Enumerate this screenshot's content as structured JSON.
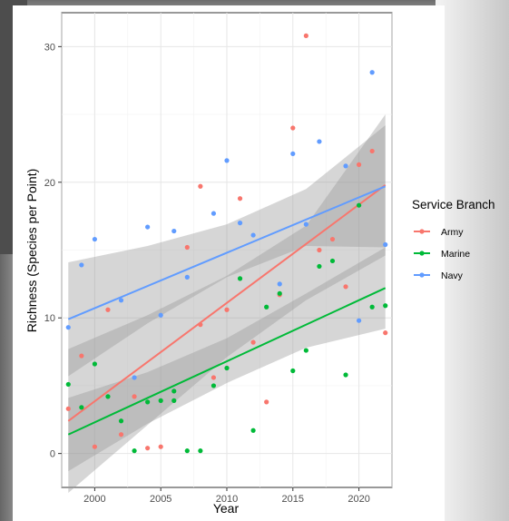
{
  "chart_data": {
    "type": "scatter",
    "xlabel": "Year",
    "ylabel": "Richness (Species per Point)",
    "xlim": [
      1997.5,
      2022.5
    ],
    "ylim": [
      -2.5,
      32.5
    ],
    "x_ticks": [
      2000,
      2005,
      2010,
      2015,
      2020
    ],
    "y_ticks": [
      0,
      10,
      20,
      30
    ],
    "grid": true,
    "legend": {
      "title": "Service Branch",
      "position": "right",
      "entries": [
        "Army",
        "Marine",
        "Navy"
      ]
    },
    "series": [
      {
        "name": "Army",
        "color": "#f8766d",
        "points": [
          [
            1998,
            3.3
          ],
          [
            1999,
            7.2
          ],
          [
            2000,
            0.5
          ],
          [
            2001,
            10.6
          ],
          [
            2002,
            1.4
          ],
          [
            2003,
            4.2
          ],
          [
            2004,
            0.4
          ],
          [
            2005,
            0.5
          ],
          [
            2007,
            15.2
          ],
          [
            2008,
            19.7
          ],
          [
            2008,
            9.5
          ],
          [
            2009,
            5.6
          ],
          [
            2010,
            10.6
          ],
          [
            2011,
            18.8
          ],
          [
            2012,
            8.2
          ],
          [
            2013,
            3.8
          ],
          [
            2014,
            11.7
          ],
          [
            2015,
            24.0
          ],
          [
            2016,
            30.8
          ],
          [
            2017,
            15.0
          ],
          [
            2018,
            15.8
          ],
          [
            2019,
            12.3
          ],
          [
            2020,
            21.3
          ],
          [
            2021,
            22.3
          ],
          [
            2022,
            8.9
          ]
        ],
        "trend": {
          "x": [
            1998,
            2022
          ],
          "y": [
            2.4,
            19.8
          ]
        },
        "ci": {
          "x": [
            1998,
            2004,
            2010,
            2016,
            2022
          ],
          "lower": [
            -2.9,
            2.1,
            7.1,
            11.3,
            14.6
          ],
          "upper": [
            7.7,
            10.2,
            13.1,
            16.8,
            25.0
          ]
        }
      },
      {
        "name": "Marine",
        "color": "#00ba38",
        "points": [
          [
            1998,
            5.1
          ],
          [
            1999,
            3.4
          ],
          [
            2000,
            6.6
          ],
          [
            2001,
            4.2
          ],
          [
            2002,
            2.4
          ],
          [
            2003,
            0.2
          ],
          [
            2004,
            3.8
          ],
          [
            2005,
            3.9
          ],
          [
            2006,
            4.6
          ],
          [
            2006,
            3.9
          ],
          [
            2007,
            0.2
          ],
          [
            2008,
            0.2
          ],
          [
            2009,
            5.0
          ],
          [
            2010,
            6.3
          ],
          [
            2011,
            12.9
          ],
          [
            2012,
            1.7
          ],
          [
            2013,
            10.8
          ],
          [
            2014,
            11.8
          ],
          [
            2015,
            6.1
          ],
          [
            2016,
            7.6
          ],
          [
            2017,
            13.8
          ],
          [
            2018,
            14.2
          ],
          [
            2019,
            5.8
          ],
          [
            2020,
            18.3
          ],
          [
            2021,
            10.8
          ],
          [
            2022,
            10.9
          ]
        ],
        "trend": {
          "x": [
            1998,
            2022
          ],
          "y": [
            1.4,
            12.2
          ]
        },
        "ci": {
          "x": [
            1998,
            2004,
            2010,
            2016,
            2022
          ],
          "lower": [
            -1.3,
            2.2,
            5.2,
            7.8,
            9.2
          ],
          "upper": [
            4.1,
            6.0,
            8.5,
            11.8,
            15.2
          ]
        }
      },
      {
        "name": "Navy",
        "color": "#619cff",
        "points": [
          [
            1998,
            9.3
          ],
          [
            1999,
            13.9
          ],
          [
            2000,
            15.8
          ],
          [
            2002,
            11.3
          ],
          [
            2003,
            5.6
          ],
          [
            2004,
            16.7
          ],
          [
            2005,
            10.2
          ],
          [
            2006,
            16.4
          ],
          [
            2007,
            13.0
          ],
          [
            2009,
            17.7
          ],
          [
            2010,
            21.6
          ],
          [
            2011,
            17.0
          ],
          [
            2012,
            16.1
          ],
          [
            2014,
            12.5
          ],
          [
            2015,
            22.1
          ],
          [
            2016,
            16.9
          ],
          [
            2017,
            23.0
          ],
          [
            2019,
            21.2
          ],
          [
            2020,
            9.8
          ],
          [
            2021,
            28.1
          ],
          [
            2022,
            15.4
          ]
        ],
        "trend": {
          "x": [
            1998,
            2022
          ],
          "y": [
            9.9,
            19.7
          ]
        },
        "ci": {
          "x": [
            1998,
            2004,
            2010,
            2016,
            2022
          ],
          "lower": [
            5.7,
            9.6,
            13.0,
            15.3,
            15.2
          ],
          "upper": [
            14.1,
            15.3,
            16.9,
            19.5,
            24.2
          ]
        }
      }
    ]
  }
}
